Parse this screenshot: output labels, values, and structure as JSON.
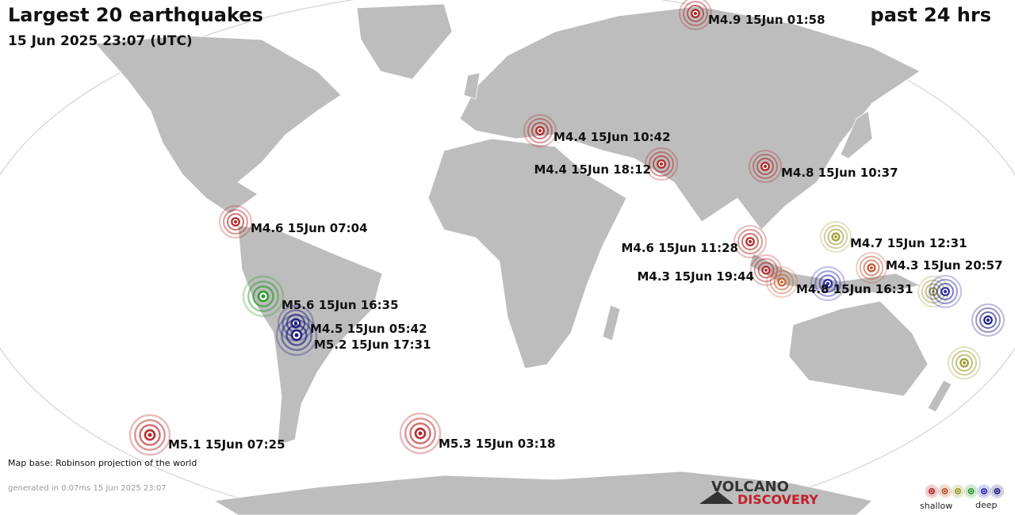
{
  "header": {
    "title": "Largest 20 earthquakes",
    "subtitle": "15 Jun 2025 23:07 (UTC)",
    "period": "past 24 hrs"
  },
  "quakes": [
    {
      "label": "M4.9 15Jun 01:58",
      "color": "#b22222"
    },
    {
      "label": "M4.4 15Jun 10:42",
      "color": "#b22222"
    },
    {
      "label": "M4.4 15Jun 18:12",
      "color": "#b22222"
    },
    {
      "label": "M4.8 15Jun 10:37",
      "color": "#b22222"
    },
    {
      "label": "M4.6 15Jun 07:04",
      "color": "#b22222"
    },
    {
      "label": "M4.6 15Jun 11:28",
      "color": "#b22222"
    },
    {
      "label": "M4.7 15Jun 12:31",
      "color": "#9a9a30"
    },
    {
      "label": "M4.3 15Jun 20:57",
      "color": "#c0502a"
    },
    {
      "label": "M4.3 15Jun 19:44",
      "color": "#b22222"
    },
    {
      "color": "#c8602a"
    },
    {
      "label": "M4.8 15Jun 16:31",
      "color": "#2a2ab0"
    },
    {
      "label": "M5.6 15Jun 16:35",
      "color": "#2a9a2a"
    },
    {
      "label": "M4.5 15Jun 05:42",
      "color": "#1c1c80"
    },
    {
      "label": "M5.2 15Jun 17:31",
      "color": "#1c1c80"
    },
    {
      "color": "#9a9a30"
    },
    {
      "color": "#2a2ab0"
    },
    {
      "color": "#1c1c80"
    },
    {
      "color": "#9a9a30"
    },
    {
      "label": "M5.1 15Jun 07:25",
      "color": "#b22222"
    },
    {
      "label": "M5.3 15Jun 03:18",
      "color": "#b22222"
    }
  ],
  "footer": {
    "map_base": "Map base: Robinson projection of the world",
    "generated": "generated in 0.07ms 15 Jun 2025 23:07"
  },
  "logo": {
    "top": "VOLCANO",
    "bottom": "DISCOVERY"
  },
  "legend": {
    "shallow": "shallow",
    "deep": "deep",
    "colors": [
      "#b22222",
      "#c0502a",
      "#9a9a30",
      "#2a9a2a",
      "#2a2ab0",
      "#1c1c80"
    ]
  }
}
